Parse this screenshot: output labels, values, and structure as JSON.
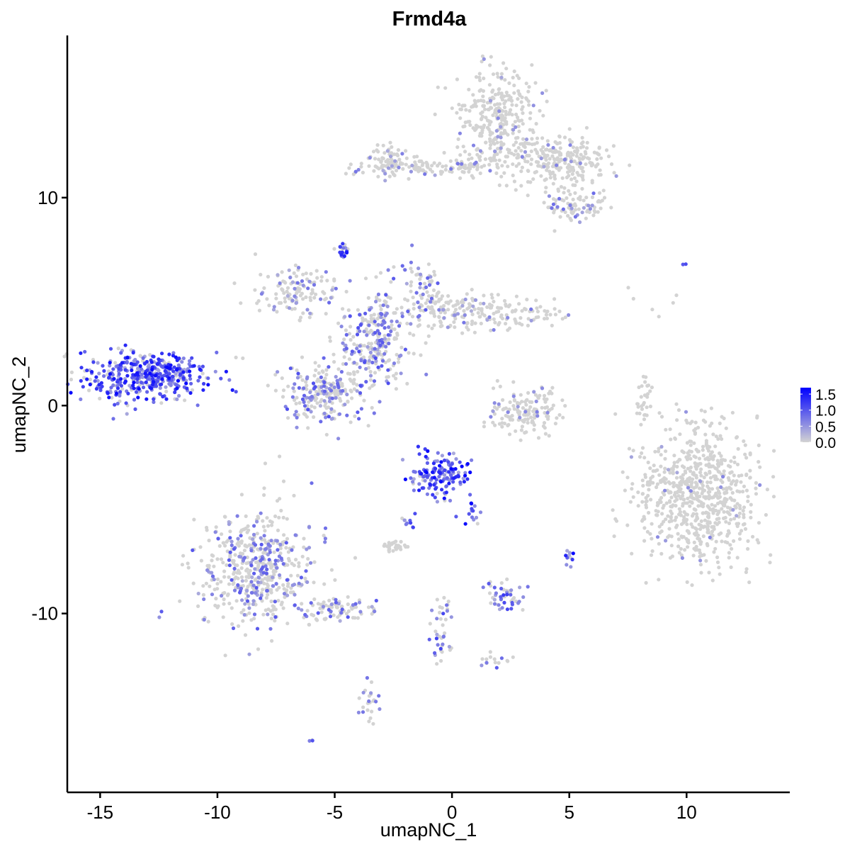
{
  "chart_data": {
    "type": "scatter",
    "title": "Frmd4a",
    "xlabel": "umapNC_1",
    "ylabel": "umapNC_2",
    "xlim": [
      -16.4,
      14.4
    ],
    "ylim": [
      -18.6,
      17.8
    ],
    "x_ticks": [
      -15,
      -10,
      -5,
      0,
      5,
      10
    ],
    "y_ticks": [
      -10,
      0,
      10
    ],
    "x_tick_labels": [
      "-15",
      "-10",
      "-5",
      "0",
      "5",
      "10"
    ],
    "y_tick_labels": [
      "-10",
      "0",
      "10"
    ],
    "grid": false,
    "color_scale": {
      "low": "#d3d3d3",
      "high": "#0000ff",
      "min": 0,
      "max": 1.7,
      "ticks": [
        0,
        0.5,
        1.0,
        1.5
      ],
      "tick_labels": [
        "0.0",
        "0.5",
        "1.0",
        "1.5"
      ],
      "legend_placement": "right"
    },
    "clusters": [
      {
        "center": [
          -13.1,
          1.4
        ],
        "spread": [
          1.3,
          0.6
        ],
        "count": 420,
        "mean_expression": 0.65
      },
      {
        "center": [
          1.9,
          13.7
        ],
        "spread": [
          0.9,
          1.3
        ],
        "count": 320,
        "mean_expression": 0.04
      },
      {
        "center": [
          4.6,
          11.8
        ],
        "spread": [
          1.0,
          0.6
        ],
        "count": 250,
        "mean_expression": 0.04
      },
      {
        "center": [
          5.2,
          9.6
        ],
        "spread": [
          0.7,
          0.4
        ],
        "count": 80,
        "mean_expression": 0.15
      },
      {
        "center": [
          -1.2,
          11.5
        ],
        "spread": [
          1.5,
          0.25
        ],
        "count": 120,
        "mean_expression": 0.1
      },
      {
        "center": [
          -2.8,
          11.8
        ],
        "spread": [
          0.4,
          0.4
        ],
        "count": 70,
        "mean_expression": 0.08
      },
      {
        "center": [
          -3.3,
          3.1
        ],
        "spread": [
          0.8,
          1.2
        ],
        "count": 260,
        "mean_expression": 0.3
      },
      {
        "center": [
          -6.6,
          5.5
        ],
        "spread": [
          0.9,
          0.5
        ],
        "count": 130,
        "mean_expression": 0.15
      },
      {
        "center": [
          0.7,
          4.5
        ],
        "spread": [
          1.9,
          0.45
        ],
        "count": 220,
        "mean_expression": 0.12
      },
      {
        "center": [
          -1.2,
          5.8
        ],
        "spread": [
          0.5,
          0.6
        ],
        "count": 60,
        "mean_expression": 0.3
      },
      {
        "center": [
          -5.4,
          0.6
        ],
        "spread": [
          0.9,
          0.7
        ],
        "count": 220,
        "mean_expression": 0.3
      },
      {
        "center": [
          -4.6,
          7.4
        ],
        "spread": [
          0.15,
          0.15
        ],
        "count": 20,
        "mean_expression": 0.6
      },
      {
        "center": [
          3.2,
          -0.3
        ],
        "spread": [
          0.8,
          0.5
        ],
        "count": 150,
        "mean_expression": 0.08
      },
      {
        "center": [
          10.5,
          -4.4
        ],
        "spread": [
          1.3,
          1.6
        ],
        "count": 720,
        "mean_expression": 0.02
      },
      {
        "center": [
          8.2,
          0.3
        ],
        "spread": [
          0.15,
          0.6
        ],
        "count": 30,
        "mean_expression": 0.0
      },
      {
        "center": [
          -0.55,
          -3.4
        ],
        "spread": [
          0.6,
          0.5
        ],
        "count": 150,
        "mean_expression": 0.95
      },
      {
        "center": [
          -8.4,
          -7.8
        ],
        "spread": [
          1.2,
          1.4
        ],
        "count": 520,
        "mean_expression": 0.25
      },
      {
        "center": [
          -5.1,
          -9.8
        ],
        "spread": [
          0.8,
          0.3
        ],
        "count": 80,
        "mean_expression": 0.25
      },
      {
        "center": [
          -2.5,
          -6.8
        ],
        "spread": [
          0.3,
          0.15
        ],
        "count": 30,
        "mean_expression": 0.05
      },
      {
        "center": [
          2.3,
          -9.1
        ],
        "spread": [
          0.4,
          0.35
        ],
        "count": 50,
        "mean_expression": 0.4
      },
      {
        "center": [
          5.0,
          -7.3
        ],
        "spread": [
          0.1,
          0.15
        ],
        "count": 10,
        "mean_expression": 0.8
      },
      {
        "center": [
          -0.4,
          -10.9
        ],
        "spread": [
          0.25,
          1.0
        ],
        "count": 40,
        "mean_expression": 0.35
      },
      {
        "center": [
          1.9,
          -12.2
        ],
        "spread": [
          0.4,
          0.2
        ],
        "count": 15,
        "mean_expression": 0.3
      },
      {
        "center": [
          -3.6,
          -14.3
        ],
        "spread": [
          0.2,
          0.5
        ],
        "count": 25,
        "mean_expression": 0.2
      },
      {
        "center": [
          -6.0,
          -16.1
        ],
        "spread": [
          0.05,
          0.05
        ],
        "count": 3,
        "mean_expression": 0.5
      },
      {
        "center": [
          0.8,
          -5.1
        ],
        "spread": [
          0.2,
          0.25
        ],
        "count": 15,
        "mean_expression": 0.7
      },
      {
        "center": [
          -1.8,
          -5.7
        ],
        "spread": [
          0.2,
          0.3
        ],
        "count": 10,
        "mean_expression": 0.5
      },
      {
        "center": [
          8.8,
          5.0
        ],
        "spread": [
          1.0,
          0.5
        ],
        "count": 6,
        "mean_expression": 0.0
      },
      {
        "center": [
          9.9,
          6.8
        ],
        "spread": [
          0.05,
          0.05
        ],
        "count": 2,
        "mean_expression": 1.2
      }
    ]
  }
}
